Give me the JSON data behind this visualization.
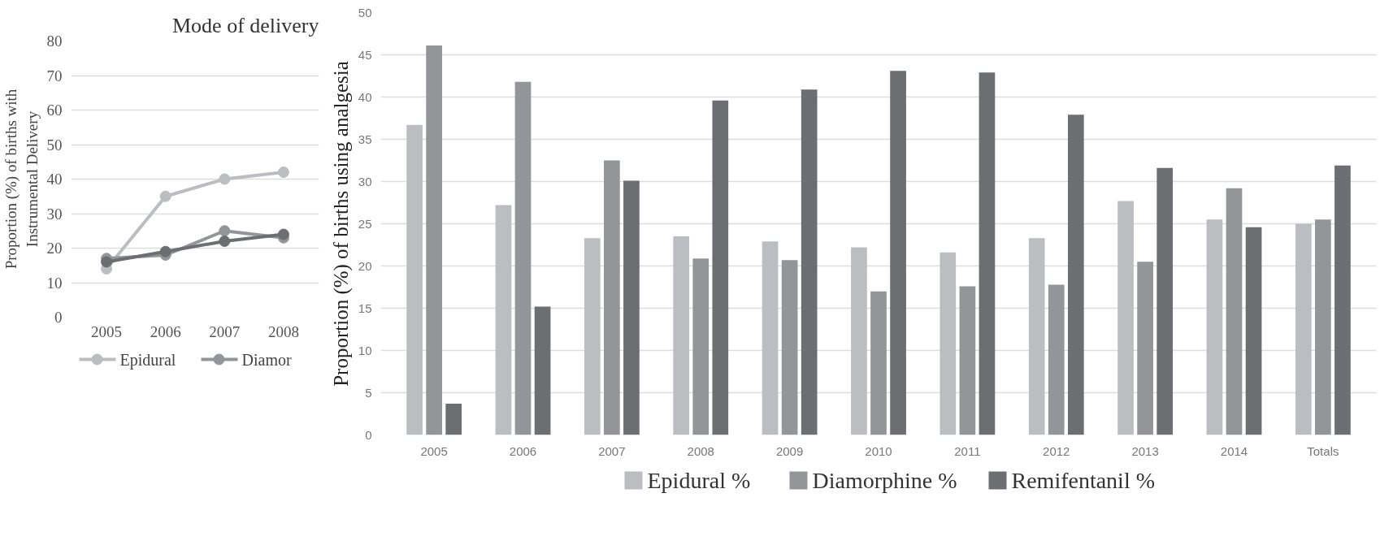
{
  "chart_data": [
    {
      "type": "line",
      "title": "Mode of delivery",
      "ylabel": "Proportion (%) of births with\nInstrumental Delivery",
      "categories": [
        "2005",
        "2006",
        "2007",
        "2008"
      ],
      "ylim": [
        0,
        80
      ],
      "yticks": [
        0,
        10,
        20,
        30,
        40,
        50,
        60,
        70,
        80
      ],
      "grid": "y",
      "legend": "bottom",
      "marker": "circle",
      "series": [
        {
          "name": "Epidural",
          "color": "#bcbdc0",
          "values": [
            14,
            35,
            40,
            42
          ]
        },
        {
          "name": "Diamor",
          "color": "#949598",
          "values": [
            17,
            18,
            25,
            23
          ]
        },
        {
          "color": "#6d6e71",
          "values": [
            16,
            19,
            22,
            24
          ]
        }
      ]
    },
    {
      "type": "bar",
      "ylabel": "Proportion (%) of births using analgesia",
      "categories": [
        "2005",
        "2006",
        "2007",
        "2008",
        "2009",
        "2010",
        "2011",
        "2012",
        "2013",
        "2014",
        "Totals"
      ],
      "ylim": [
        0,
        50
      ],
      "yticks": [
        0,
        5,
        10,
        15,
        20,
        25,
        30,
        35,
        40,
        45,
        50
      ],
      "grid": "y",
      "legend": "bottom",
      "series": [
        {
          "name": "Epidural %",
          "color": "#bcbdc0",
          "values": [
            36.7,
            27.2,
            23.3,
            23.5,
            22.9,
            22.2,
            21.6,
            23.3,
            27.7,
            25.5,
            25.0
          ]
        },
        {
          "name": "Diamorphine %",
          "color": "#949598",
          "values": [
            46.1,
            41.8,
            32.5,
            20.9,
            20.7,
            17.0,
            17.6,
            17.8,
            20.5,
            29.2,
            25.5
          ]
        },
        {
          "name": "Remifentanil %",
          "color": "#6d6e71",
          "values": [
            3.7,
            15.2,
            30.1,
            39.6,
            40.9,
            43.1,
            42.9,
            37.9,
            31.6,
            24.6,
            31.9
          ]
        }
      ]
    }
  ]
}
